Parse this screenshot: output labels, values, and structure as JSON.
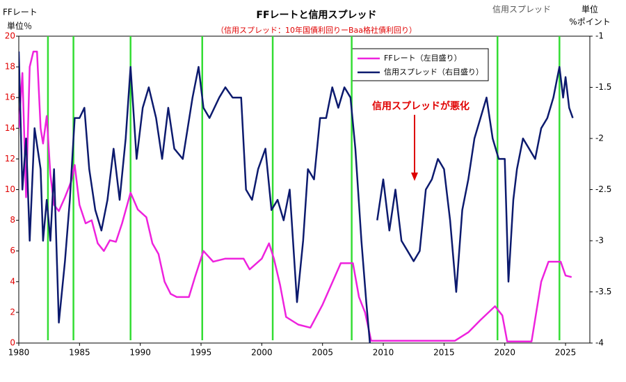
{
  "chart_data": {
    "type": "line",
    "title": "FFレートと信用スプレッド",
    "subtitle": "（信用スプレッド：10年国債利回りーBaa格社債利回り）",
    "y_label": [
      "FFレート",
      "単位％"
    ],
    "y2_label": [
      "単位",
      "%ポイント"
    ],
    "y2_series_note": "信用スプレッド",
    "annotation": "信用スプレッドが悪化",
    "xlim": [
      1980,
      2027
    ],
    "xticks": [
      1980,
      1985,
      1990,
      1995,
      2000,
      2005,
      2010,
      2015,
      2020,
      2025
    ],
    "ylim": [
      0,
      20
    ],
    "yticks": [
      0,
      2,
      4,
      6,
      8,
      10,
      12,
      14,
      16,
      18,
      20
    ],
    "y2lim": [
      -4,
      -1
    ],
    "y2ticks": [
      -4,
      -3.5,
      -3,
      -2.5,
      -2,
      -1.5,
      -1
    ],
    "vlines": {
      "color": "#33dd33",
      "x": [
        1982.4,
        1984.5,
        1989.2,
        1995.1,
        2000.9,
        2007.4,
        2019.4,
        2024.5
      ]
    },
    "series": [
      {
        "name": "FFレート（左目盛り）",
        "color": "#ee22dd",
        "x": [
          1980.0,
          1980.3,
          1980.6,
          1980.9,
          1981.2,
          1981.5,
          1981.8,
          1982.0,
          1982.3,
          1982.6,
          1982.9,
          1983.3,
          1983.8,
          1984.3,
          1984.6,
          1985.0,
          1985.5,
          1986.0,
          1986.5,
          1987.0,
          1987.5,
          1988.0,
          1988.5,
          1989.2,
          1989.8,
          1990.5,
          1991.0,
          1991.5,
          1992.0,
          1992.5,
          1993.0,
          1994.0,
          1994.5,
          1995.2,
          1996.0,
          1997.0,
          1998.5,
          1999.0,
          2000.0,
          2000.6,
          2001.0,
          2001.5,
          2002.0,
          2003.0,
          2004.0,
          2005.0,
          2006.5,
          2007.5,
          2008.0,
          2008.5,
          2009.0,
          2015.9,
          2017.0,
          2018.0,
          2019.2,
          2019.8,
          2020.2,
          2022.2,
          2023.0,
          2023.6,
          2024.6,
          2025.0,
          2025.5
        ],
        "values": [
          14,
          17.6,
          9.5,
          18,
          19,
          19,
          14,
          13,
          14.8,
          11,
          9,
          8.6,
          9.5,
          10.5,
          11.6,
          9,
          7.8,
          8,
          6.5,
          6,
          6.7,
          6.6,
          7.8,
          9.8,
          8.7,
          8.2,
          6.5,
          5.8,
          4.0,
          3.2,
          3.0,
          3.0,
          4.3,
          6.0,
          5.3,
          5.5,
          5.5,
          4.8,
          5.5,
          6.5,
          5.5,
          3.8,
          1.7,
          1.2,
          1.0,
          2.5,
          5.2,
          5.2,
          3.0,
          2.0,
          0.15,
          0.15,
          0.7,
          1.5,
          2.4,
          1.8,
          0.1,
          0.1,
          4.0,
          5.3,
          5.3,
          4.4,
          4.3
        ]
      },
      {
        "name": "信用スプレッド（右目盛り）",
        "color": "#0c1a6e",
        "axis": "y2",
        "x": [
          1980.0,
          1980.3,
          1980.6,
          1980.9,
          1981.3,
          1981.8,
          1982.0,
          1982.3,
          1982.6,
          1982.9,
          1983.3,
          1983.8,
          1984.2,
          1984.6,
          1985.0,
          1985.4,
          1985.8,
          1986.3,
          1986.8,
          1987.3,
          1987.8,
          1988.3,
          1988.8,
          1989.2,
          1989.7,
          1990.2,
          1990.7,
          1991.3,
          1991.8,
          1992.3,
          1992.8,
          1993.5,
          1994.3,
          1994.8,
          1995.2,
          1995.7,
          1996.5,
          1997.0,
          1997.6,
          1998.3,
          1998.7,
          1999.2,
          1999.7,
          2000.3,
          2000.8,
          2001.3,
          2001.8,
          2002.3,
          2002.9,
          2003.4,
          2003.8,
          2004.3,
          2004.8,
          2005.3,
          2005.8,
          2006.3,
          2006.8,
          2007.3,
          2007.7,
          2008.2,
          2008.6,
          2008.9,
          2009.0,
          2009.5,
          2010.0,
          2010.5,
          2011.0,
          2011.5,
          2012.0,
          2012.5,
          2013.0,
          2013.5,
          2014.0,
          2014.5,
          2015.0,
          2015.5,
          2016.0,
          2016.5,
          2017.0,
          2017.5,
          2018.0,
          2018.5,
          2019.0,
          2019.5,
          2020.0,
          2020.3,
          2020.7,
          2021.0,
          2021.5,
          2022.0,
          2022.5,
          2023.0,
          2023.5,
          2024.0,
          2024.5,
          2024.8,
          2025.0,
          2025.3,
          2025.6
        ],
        "values": [
          -1.15,
          -2.5,
          -2.0,
          -3.0,
          -1.9,
          -2.3,
          -3.0,
          -2.6,
          -3.0,
          -2.3,
          -3.8,
          -3.2,
          -2.6,
          -1.8,
          -1.8,
          -1.7,
          -2.3,
          -2.7,
          -2.9,
          -2.6,
          -2.1,
          -2.6,
          -2.0,
          -1.3,
          -2.2,
          -1.7,
          -1.5,
          -1.8,
          -2.2,
          -1.7,
          -2.1,
          -2.2,
          -1.6,
          -1.3,
          -1.7,
          -1.8,
          -1.6,
          -1.5,
          -1.6,
          -1.6,
          -2.5,
          -2.6,
          -2.3,
          -2.1,
          -2.7,
          -2.6,
          -2.8,
          -2.5,
          -3.6,
          -3.0,
          -2.3,
          -2.4,
          -1.8,
          -1.8,
          -1.5,
          -1.7,
          -1.5,
          -1.6,
          -2.1,
          -3.0,
          -3.6,
          -4.0,
          null,
          -2.8,
          -2.4,
          -2.9,
          -2.5,
          -3.0,
          -3.1,
          -3.2,
          -3.1,
          -2.5,
          -2.4,
          -2.2,
          -2.3,
          -2.8,
          -3.5,
          -2.7,
          -2.4,
          -2.0,
          -1.8,
          -1.6,
          -2.0,
          -2.2,
          -2.2,
          -3.4,
          -2.6,
          -2.3,
          -2.0,
          -2.1,
          -2.2,
          -1.9,
          -1.8,
          -1.6,
          -1.3,
          -1.6,
          -1.4,
          -1.7,
          -1.8
        ]
      }
    ]
  }
}
